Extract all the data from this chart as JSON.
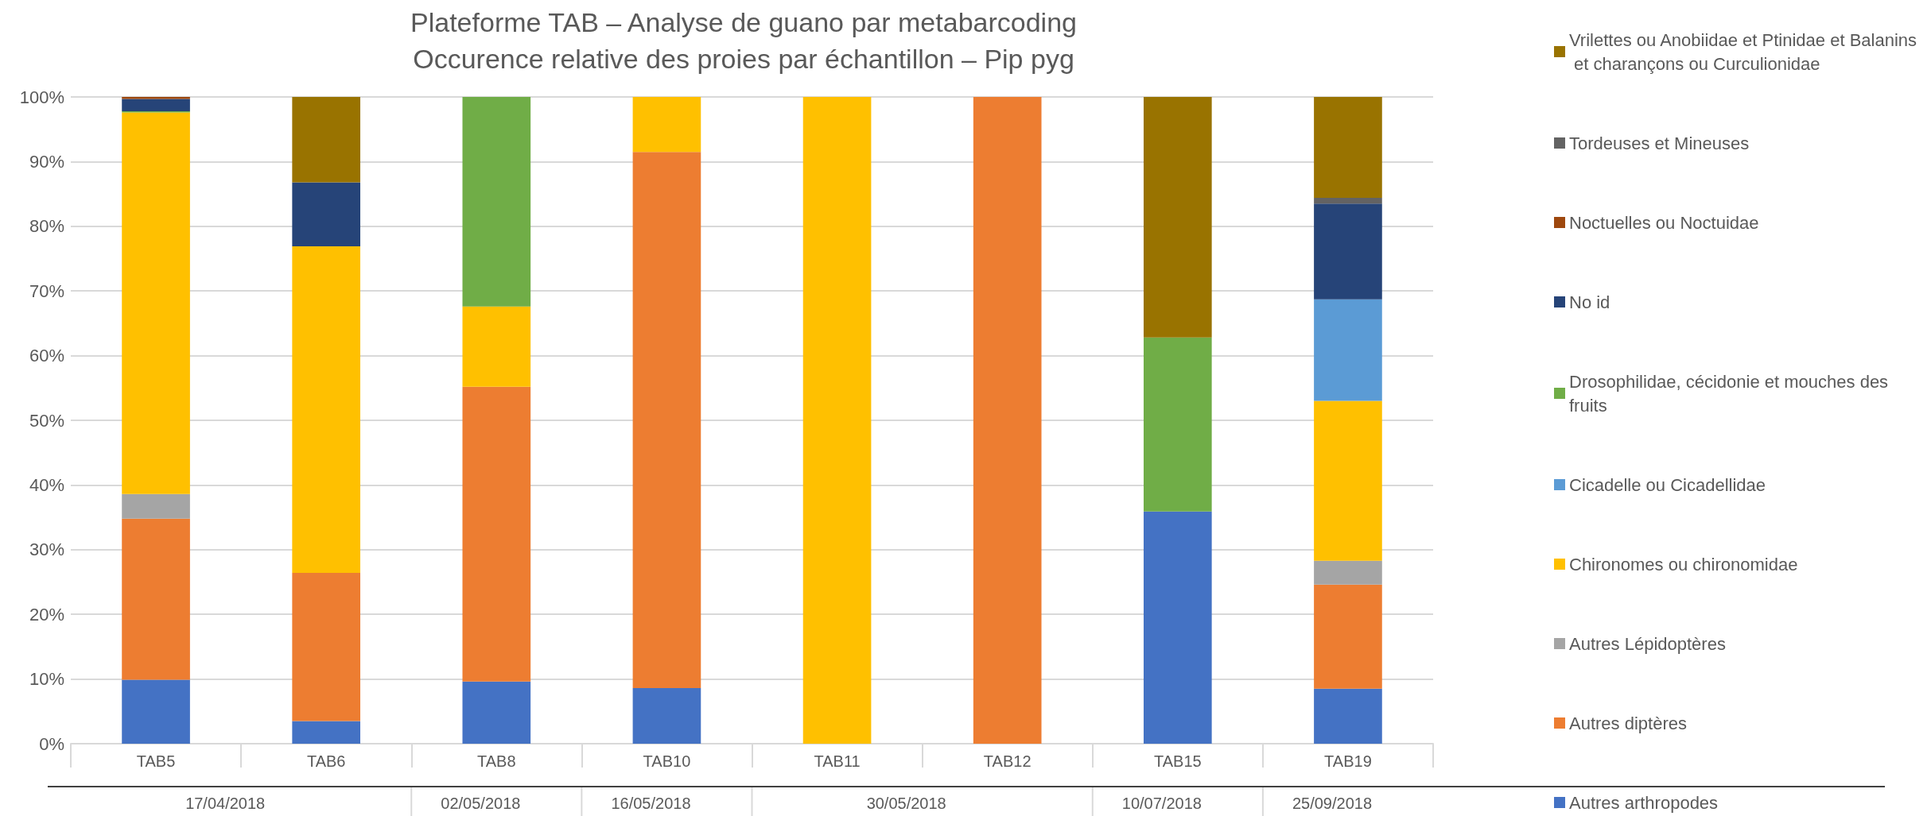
{
  "chart_data": {
    "type": "bar",
    "stacked": true,
    "title": "Plateforme TAB – Analyse de guano par metabarcoding\nOccurence relative des proies par échantillon – Pip pyg",
    "categories": [
      "TAB5",
      "TAB6",
      "TAB8",
      "TAB10",
      "TAB11",
      "TAB12",
      "TAB15",
      "TAB19"
    ],
    "annotations": [
      "17/04/2018",
      "02/05/2018",
      "16/05/2018",
      "30/05/2018",
      "10/07/2018",
      "25/09/2018"
    ],
    "series": [
      {
        "name": "Autres arthropodes",
        "color": "#4472c4",
        "values": [
          9.9,
          3.5,
          9.6,
          8.6,
          0,
          0,
          35.9,
          8.5
        ]
      },
      {
        "name": "Autres diptères",
        "color": "#ed7d31",
        "values": [
          24.9,
          22.9,
          45.6,
          82.9,
          0,
          100,
          0,
          16.1
        ]
      },
      {
        "name": "Autres Lépidoptères",
        "color": "#a5a5a5",
        "values": [
          3.8,
          0,
          0,
          0,
          0,
          0,
          0,
          3.7
        ]
      },
      {
        "name": "Chironomes ou chironomidae",
        "color": "#ffc000",
        "values": [
          59.0,
          50.5,
          12.4,
          8.5,
          100,
          0,
          0,
          24.7
        ]
      },
      {
        "name": "Cicadelle ou Cicadellidae",
        "color": "#5b9bd5",
        "values": [
          0,
          0,
          0,
          0,
          0,
          0,
          0,
          15.7
        ]
      },
      {
        "name": "Drosophilidae, cécidonie et mouches des fruits",
        "color": "#70ad47",
        "values": [
          0.2,
          0,
          32.4,
          0,
          0,
          0,
          26.9,
          0
        ]
      },
      {
        "name": "No id",
        "color": "#264478",
        "values": [
          1.9,
          9.9,
          0,
          0,
          0,
          0,
          0,
          14.8
        ]
      },
      {
        "name": "Noctuelles ou Noctuidae",
        "color": "#9e480e",
        "values": [
          0.3,
          0,
          0,
          0,
          0,
          0,
          0,
          0
        ]
      },
      {
        "name": "Tordeuses et Mineuses",
        "color": "#636363",
        "values": [
          0,
          0,
          0,
          0,
          0,
          0,
          0,
          0.9
        ]
      },
      {
        "name": "Vrilettes ou Anobiidae et Ptinidae et Balanins et charançons ou Curculionidae",
        "color": "#997300",
        "values": [
          0,
          13.2,
          0,
          0,
          0,
          0,
          37.2,
          15.6
        ]
      }
    ],
    "ylim": [
      0,
      100
    ],
    "yticks": [
      {
        "value": 0,
        "label": "0%"
      },
      {
        "value": 10,
        "label": "10%"
      },
      {
        "value": 20,
        "label": "20%"
      },
      {
        "value": 30,
        "label": "30%"
      },
      {
        "value": 40,
        "label": "40%"
      },
      {
        "value": 50,
        "label": "50%"
      },
      {
        "value": 60,
        "label": "60%"
      },
      {
        "value": 70,
        "label": "70%"
      },
      {
        "value": 80,
        "label": "80%"
      },
      {
        "value": 90,
        "label": "90%"
      },
      {
        "value": 100,
        "label": "100%"
      }
    ],
    "grid": "y",
    "legend": "right"
  }
}
